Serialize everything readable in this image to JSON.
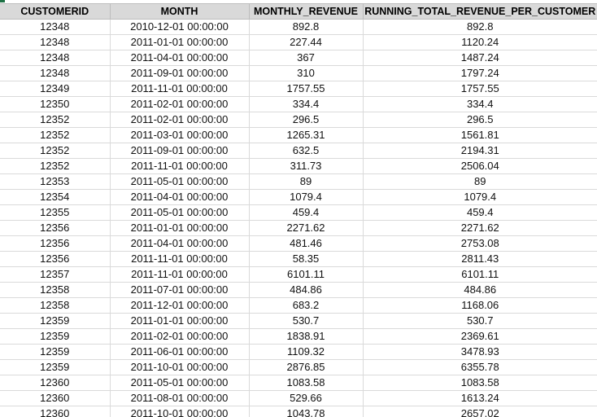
{
  "columns": [
    "CUSTOMERID",
    "MONTH",
    "MONTHLY_REVENUE",
    "RUNNING_TOTAL_REVENUE_PER_CUSTOMER"
  ],
  "rows": [
    [
      "12348",
      "2010-12-01 00:00:00",
      "892.8",
      "892.8"
    ],
    [
      "12348",
      "2011-01-01 00:00:00",
      "227.44",
      "1120.24"
    ],
    [
      "12348",
      "2011-04-01 00:00:00",
      "367",
      "1487.24"
    ],
    [
      "12348",
      "2011-09-01 00:00:00",
      "310",
      "1797.24"
    ],
    [
      "12349",
      "2011-11-01 00:00:00",
      "1757.55",
      "1757.55"
    ],
    [
      "12350",
      "2011-02-01 00:00:00",
      "334.4",
      "334.4"
    ],
    [
      "12352",
      "2011-02-01 00:00:00",
      "296.5",
      "296.5"
    ],
    [
      "12352",
      "2011-03-01 00:00:00",
      "1265.31",
      "1561.81"
    ],
    [
      "12352",
      "2011-09-01 00:00:00",
      "632.5",
      "2194.31"
    ],
    [
      "12352",
      "2011-11-01 00:00:00",
      "311.73",
      "2506.04"
    ],
    [
      "12353",
      "2011-05-01 00:00:00",
      "89",
      "89"
    ],
    [
      "12354",
      "2011-04-01 00:00:00",
      "1079.4",
      "1079.4"
    ],
    [
      "12355",
      "2011-05-01 00:00:00",
      "459.4",
      "459.4"
    ],
    [
      "12356",
      "2011-01-01 00:00:00",
      "2271.62",
      "2271.62"
    ],
    [
      "12356",
      "2011-04-01 00:00:00",
      "481.46",
      "2753.08"
    ],
    [
      "12356",
      "2011-11-01 00:00:00",
      "58.35",
      "2811.43"
    ],
    [
      "12357",
      "2011-11-01 00:00:00",
      "6101.11",
      "6101.11"
    ],
    [
      "12358",
      "2011-07-01 00:00:00",
      "484.86",
      "484.86"
    ],
    [
      "12358",
      "2011-12-01 00:00:00",
      "683.2",
      "1168.06"
    ],
    [
      "12359",
      "2011-01-01 00:00:00",
      "530.7",
      "530.7"
    ],
    [
      "12359",
      "2011-02-01 00:00:00",
      "1838.91",
      "2369.61"
    ],
    [
      "12359",
      "2011-06-01 00:00:00",
      "1109.32",
      "3478.93"
    ],
    [
      "12359",
      "2011-10-01 00:00:00",
      "2876.85",
      "6355.78"
    ],
    [
      "12360",
      "2011-05-01 00:00:00",
      "1083.58",
      "1083.58"
    ],
    [
      "12360",
      "2011-08-01 00:00:00",
      "529.66",
      "1613.24"
    ],
    [
      "12360",
      "2011-10-01 00:00:00",
      "1043.78",
      "2657.02"
    ]
  ]
}
